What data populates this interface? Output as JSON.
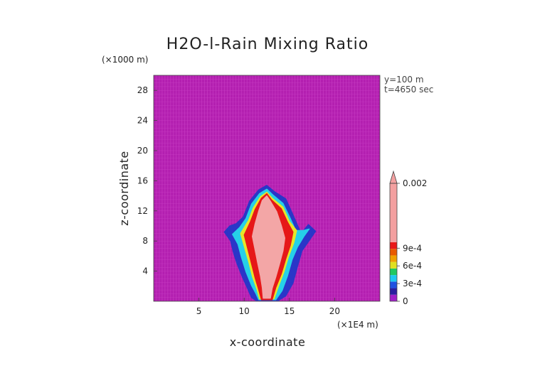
{
  "chart_data": {
    "type": "heatmap",
    "title": "H2O-l-Rain Mixing Ratio",
    "xlabel": "x-coordinate",
    "ylabel": "z-coordinate",
    "x_units": "(×1E4 m)",
    "y_units": "(×1000 m)",
    "xlim": [
      0,
      25
    ],
    "ylim": [
      0,
      30
    ],
    "x_ticks": [
      5,
      10,
      15,
      20
    ],
    "y_ticks": [
      4,
      8,
      12,
      16,
      20,
      24,
      28
    ],
    "info": [
      "y=100 m",
      "t=4650 sec"
    ],
    "colorbar": {
      "colors": [
        "#a020c8",
        "#2a1ea0",
        "#1f52e0",
        "#1ec8f0",
        "#20c860",
        "#e0e020",
        "#f0a000",
        "#e85a00",
        "#e81818",
        "#f3a0a0"
      ],
      "ticks": [
        {
          "value": 0,
          "label": "0"
        },
        {
          "value": 3,
          "label": "3e-4"
        },
        {
          "value": 6,
          "label": "6e-4"
        },
        {
          "value": 9,
          "label": "9e-4"
        },
        {
          "value": 20,
          "label": "0.002"
        }
      ]
    },
    "background_color": "#b31fb0",
    "grid_line_color": "#c83ec4",
    "contours": [
      {
        "level": "blue",
        "color": "#2a36c8",
        "points": [
          [
            7.8,
            9.2
          ],
          [
            8.5,
            8.0
          ],
          [
            8.8,
            6.5
          ],
          [
            9.2,
            5.0
          ],
          [
            9.8,
            3.2
          ],
          [
            10.4,
            1.6
          ],
          [
            10.8,
            0.5
          ],
          [
            11.3,
            0.1
          ],
          [
            13.8,
            0.1
          ],
          [
            14.6,
            0.7
          ],
          [
            15.4,
            2.4
          ],
          [
            15.9,
            4.6
          ],
          [
            16.4,
            6.7
          ],
          [
            17.1,
            7.9
          ],
          [
            17.9,
            9.3
          ],
          [
            17.1,
            10.2
          ],
          [
            16.3,
            9.0
          ],
          [
            15.5,
            11.2
          ],
          [
            14.6,
            13.6
          ],
          [
            13.3,
            14.6
          ],
          [
            12.5,
            15.4
          ],
          [
            11.6,
            14.8
          ],
          [
            10.6,
            13.3
          ],
          [
            9.9,
            11.2
          ],
          [
            9.1,
            10.3
          ],
          [
            8.4,
            10.0
          ]
        ]
      },
      {
        "level": "cyan",
        "color": "#26d0e8",
        "points": [
          [
            8.7,
            8.9
          ],
          [
            9.3,
            7.6
          ],
          [
            9.7,
            5.8
          ],
          [
            10.2,
            3.9
          ],
          [
            10.8,
            2.1
          ],
          [
            11.3,
            1.0
          ],
          [
            11.6,
            0.2
          ],
          [
            13.5,
            0.2
          ],
          [
            14.2,
            1.4
          ],
          [
            14.8,
            3.4
          ],
          [
            15.3,
            5.5
          ],
          [
            15.9,
            7.2
          ],
          [
            16.6,
            8.6
          ],
          [
            17.2,
            9.6
          ],
          [
            16.5,
            9.4
          ],
          [
            15.7,
            9.4
          ],
          [
            15.1,
            11.0
          ],
          [
            14.3,
            13.0
          ],
          [
            13.2,
            14.1
          ],
          [
            12.5,
            14.9
          ],
          [
            11.7,
            14.3
          ],
          [
            10.8,
            12.9
          ],
          [
            10.2,
            11.0
          ],
          [
            9.5,
            9.8
          ]
        ]
      },
      {
        "level": "yellow",
        "color": "#e6e628",
        "points": [
          [
            9.6,
            9.0
          ],
          [
            10.0,
            7.3
          ],
          [
            10.5,
            5.2
          ],
          [
            10.9,
            3.3
          ],
          [
            11.4,
            1.6
          ],
          [
            11.7,
            0.3
          ],
          [
            13.3,
            0.3
          ],
          [
            13.8,
            2.0
          ],
          [
            14.4,
            3.9
          ],
          [
            14.9,
            5.9
          ],
          [
            15.5,
            7.8
          ],
          [
            15.8,
            9.4
          ],
          [
            15.0,
            10.6
          ],
          [
            14.3,
            12.5
          ],
          [
            13.1,
            13.7
          ],
          [
            12.5,
            14.5
          ],
          [
            11.8,
            13.9
          ],
          [
            11.0,
            12.4
          ],
          [
            10.5,
            10.8
          ]
        ]
      },
      {
        "level": "red",
        "color": "#e61818",
        "points": [
          [
            10.0,
            8.8
          ],
          [
            10.4,
            6.9
          ],
          [
            10.8,
            5.0
          ],
          [
            11.2,
            3.1
          ],
          [
            11.6,
            1.5
          ],
          [
            11.9,
            0.2
          ],
          [
            13.1,
            0.2
          ],
          [
            13.5,
            1.8
          ],
          [
            14.1,
            3.6
          ],
          [
            14.6,
            5.6
          ],
          [
            15.1,
            7.4
          ],
          [
            15.4,
            9.2
          ],
          [
            14.8,
            10.5
          ],
          [
            14.1,
            12.3
          ],
          [
            13.0,
            13.5
          ],
          [
            12.5,
            14.3
          ],
          [
            11.9,
            13.7
          ],
          [
            11.2,
            12.2
          ],
          [
            10.7,
            10.6
          ]
        ]
      },
      {
        "level": "pink",
        "color": "#f3a6a6",
        "points": [
          [
            10.9,
            8.6
          ],
          [
            11.2,
            6.8
          ],
          [
            11.5,
            5.0
          ],
          [
            11.8,
            3.3
          ],
          [
            12.0,
            1.8
          ],
          [
            12.1,
            0.4
          ],
          [
            12.9,
            0.4
          ],
          [
            13.1,
            1.7
          ],
          [
            13.5,
            3.2
          ],
          [
            13.9,
            4.9
          ],
          [
            14.3,
            6.7
          ],
          [
            14.5,
            8.4
          ],
          [
            14.1,
            10.1
          ],
          [
            13.6,
            11.9
          ],
          [
            12.9,
            13.3
          ],
          [
            12.5,
            14.0
          ],
          [
            12.0,
            13.4
          ],
          [
            11.6,
            12.0
          ],
          [
            11.2,
            10.3
          ]
        ]
      }
    ]
  }
}
